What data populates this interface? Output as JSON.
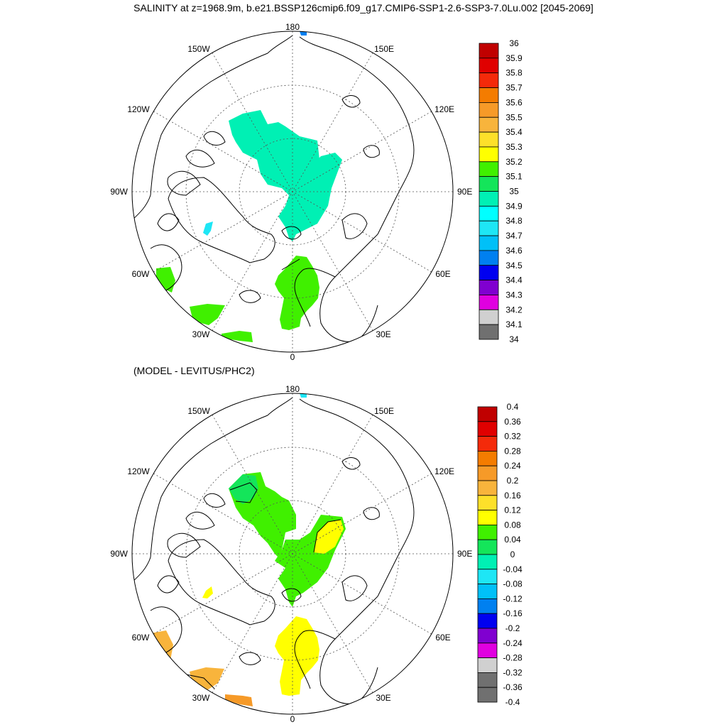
{
  "title": "SALINITY at z=1968.9m, b.e21.BSSP126cmip6.f09_g17.CMIP6-SSP1-2.6-SSP3-7.0Lu.002 [2045-2069]",
  "subtitle": "(MODEL - LEVITUS/PHC2)",
  "longitude_labels": {
    "top": "180",
    "bottom": "0",
    "left": "90W",
    "right": "90E",
    "w150": "150W",
    "e150": "150E",
    "w120": "120W",
    "e120": "120E",
    "w60": "60W",
    "e60": "60E",
    "w30": "30W",
    "e30": "30E"
  },
  "top_colorbar": {
    "labels": [
      "36",
      "35.9",
      "35.8",
      "35.7",
      "35.6",
      "35.5",
      "35.4",
      "35.3",
      "35.2",
      "35.1",
      "35",
      "34.9",
      "34.8",
      "34.7",
      "34.6",
      "34.5",
      "34.4",
      "34.3",
      "34.2",
      "34.1",
      "34"
    ],
    "colors": [
      "#c00000",
      "#e00000",
      "#f42a0a",
      "#f47c00",
      "#f69a28",
      "#f8b43c",
      "#fde02a",
      "#ffff00",
      "#40f000",
      "#14e55a",
      "#00f0b4",
      "#00ffff",
      "#1ee6f5",
      "#00c0f8",
      "#0080f0",
      "#0000f0",
      "#8000d0",
      "#e000e0",
      "#d0d0d0",
      "#707070"
    ]
  },
  "bottom_colorbar": {
    "labels": [
      "0.4",
      "0.36",
      "0.32",
      "0.28",
      "0.24",
      "0.2",
      "0.16",
      "0.12",
      "0.08",
      "0.04",
      "0",
      "-0.04",
      "-0.08",
      "-0.12",
      "-0.16",
      "-0.2",
      "-0.24",
      "-0.28",
      "-0.32",
      "-0.36",
      "-0.4"
    ],
    "colors": [
      "#c00000",
      "#e00000",
      "#f42a0a",
      "#f47c00",
      "#f69a28",
      "#f8b43c",
      "#fde02a",
      "#ffff00",
      "#40f000",
      "#14e55a",
      "#00f0b4",
      "#1ee6f5",
      "#00c0f8",
      "#0080f0",
      "#0000f0",
      "#8000d0",
      "#e000e0",
      "#d0d0d0",
      "#707070",
      "#707070"
    ]
  },
  "panels": {
    "top": {
      "field_colors": {
        "central_arctic": "#00f0b4",
        "fram_norwegian": "#40f000",
        "baffin_bit": "#1ee6f5",
        "labrador_sea": "#40f000",
        "irminger_sea": "#40f000",
        "iceland_south": "#40f000",
        "bering_strait": "#0080f0"
      }
    },
    "bottom": {
      "field_colors": {
        "canada_basin": "#40f000",
        "canada_basin_edge": "#14e55a",
        "eurasian_basin": "#40f000",
        "eurasian_patch": "#ffff00",
        "fram_norwegian": "#ffff00",
        "baffin_bit": "#ffff00",
        "labrador_sea": "#f8b43c",
        "irminger_sea": "#f8b43c",
        "iceland_south": "#f69a28",
        "bering_strait": "#1ee6f5"
      }
    }
  }
}
